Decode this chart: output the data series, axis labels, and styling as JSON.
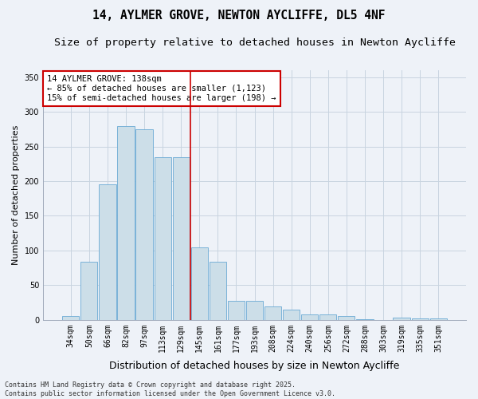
{
  "title": "14, AYLMER GROVE, NEWTON AYCLIFFE, DL5 4NF",
  "subtitle": "Size of property relative to detached houses in Newton Aycliffe",
  "xlabel": "Distribution of detached houses by size in Newton Aycliffe",
  "ylabel": "Number of detached properties",
  "categories": [
    "34sqm",
    "50sqm",
    "66sqm",
    "82sqm",
    "97sqm",
    "113sqm",
    "129sqm",
    "145sqm",
    "161sqm",
    "177sqm",
    "193sqm",
    "208sqm",
    "224sqm",
    "240sqm",
    "256sqm",
    "272sqm",
    "288sqm",
    "303sqm",
    "319sqm",
    "335sqm",
    "351sqm"
  ],
  "values": [
    6,
    84,
    195,
    280,
    275,
    235,
    235,
    105,
    84,
    27,
    27,
    19,
    15,
    8,
    8,
    5,
    1,
    0,
    3,
    2,
    2
  ],
  "bar_color": "#ccdee8",
  "bar_edge_color": "#6aaad4",
  "grid_color": "#c8d4e0",
  "vline_pos": 6.5,
  "vline_color": "#cc0000",
  "annotation_text": "14 AYLMER GROVE: 138sqm\n← 85% of detached houses are smaller (1,123)\n15% of semi-detached houses are larger (198) →",
  "annotation_box_facecolor": "#ffffff",
  "annotation_box_edgecolor": "#cc0000",
  "ylim": [
    0,
    360
  ],
  "yticks": [
    0,
    50,
    100,
    150,
    200,
    250,
    300,
    350
  ],
  "footer_text": "Contains HM Land Registry data © Crown copyright and database right 2025.\nContains public sector information licensed under the Open Government Licence v3.0.",
  "bg_color": "#eef2f8",
  "title_fontsize": 10.5,
  "subtitle_fontsize": 9.5,
  "ylabel_fontsize": 8,
  "xlabel_fontsize": 9,
  "tick_fontsize": 7,
  "annot_fontsize": 7.5,
  "footer_fontsize": 6
}
